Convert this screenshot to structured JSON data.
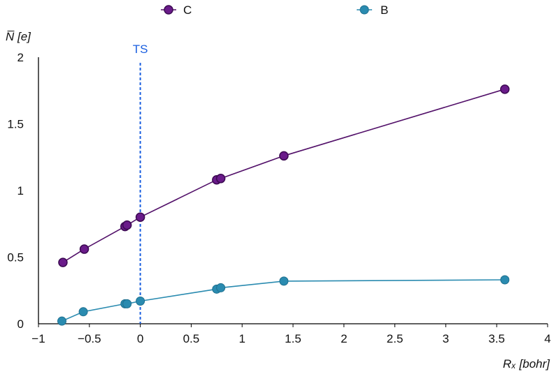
{
  "chart_data": {
    "type": "line",
    "title": "",
    "xlabel": "Rₓ [bohr]",
    "ylabel": "N̅ [e]",
    "xlim": [
      -1,
      4
    ],
    "ylim": [
      0,
      2
    ],
    "x_ticks": [
      -1,
      -0.5,
      0,
      0.5,
      1,
      1.5,
      2,
      2.5,
      3,
      3.5,
      4
    ],
    "x_tick_labels": [
      "−1",
      "−0.5",
      "0",
      "0.5",
      "1",
      "1.5",
      "2",
      "2.5",
      "3",
      "3.5",
      "4"
    ],
    "y_ticks": [
      0,
      0.5,
      1,
      1.5,
      2
    ],
    "y_tick_labels": [
      "0",
      "0.5",
      "1",
      "1.5",
      "2"
    ],
    "grid": false,
    "legend_position": "top",
    "series": [
      {
        "name": "C",
        "color": "#521069",
        "marker_color": "#6a1b8a",
        "points": [
          {
            "x": -0.76,
            "y": 0.46
          },
          {
            "x": -0.55,
            "y": 0.56
          },
          {
            "x": -0.15,
            "y": 0.73
          },
          {
            "x": -0.13,
            "y": 0.74
          },
          {
            "x": 0.0,
            "y": 0.8
          },
          {
            "x": 0.75,
            "y": 1.08
          },
          {
            "x": 0.79,
            "y": 1.09
          },
          {
            "x": 1.41,
            "y": 1.26
          },
          {
            "x": 3.58,
            "y": 1.76
          }
        ]
      },
      {
        "name": "B",
        "color": "#2a8bb0",
        "marker_color": "#2a8bb0",
        "points": [
          {
            "x": -0.77,
            "y": 0.02
          },
          {
            "x": -0.56,
            "y": 0.09
          },
          {
            "x": -0.15,
            "y": 0.15
          },
          {
            "x": -0.13,
            "y": 0.15
          },
          {
            "x": 0.0,
            "y": 0.17
          },
          {
            "x": 0.75,
            "y": 0.26
          },
          {
            "x": 0.79,
            "y": 0.27
          },
          {
            "x": 1.41,
            "y": 0.32
          },
          {
            "x": 3.58,
            "y": 0.33
          }
        ]
      }
    ],
    "annotations": [
      {
        "text": "TS",
        "x": 0,
        "style": "vertical dashed line",
        "color": "#1a5fe0"
      }
    ]
  }
}
